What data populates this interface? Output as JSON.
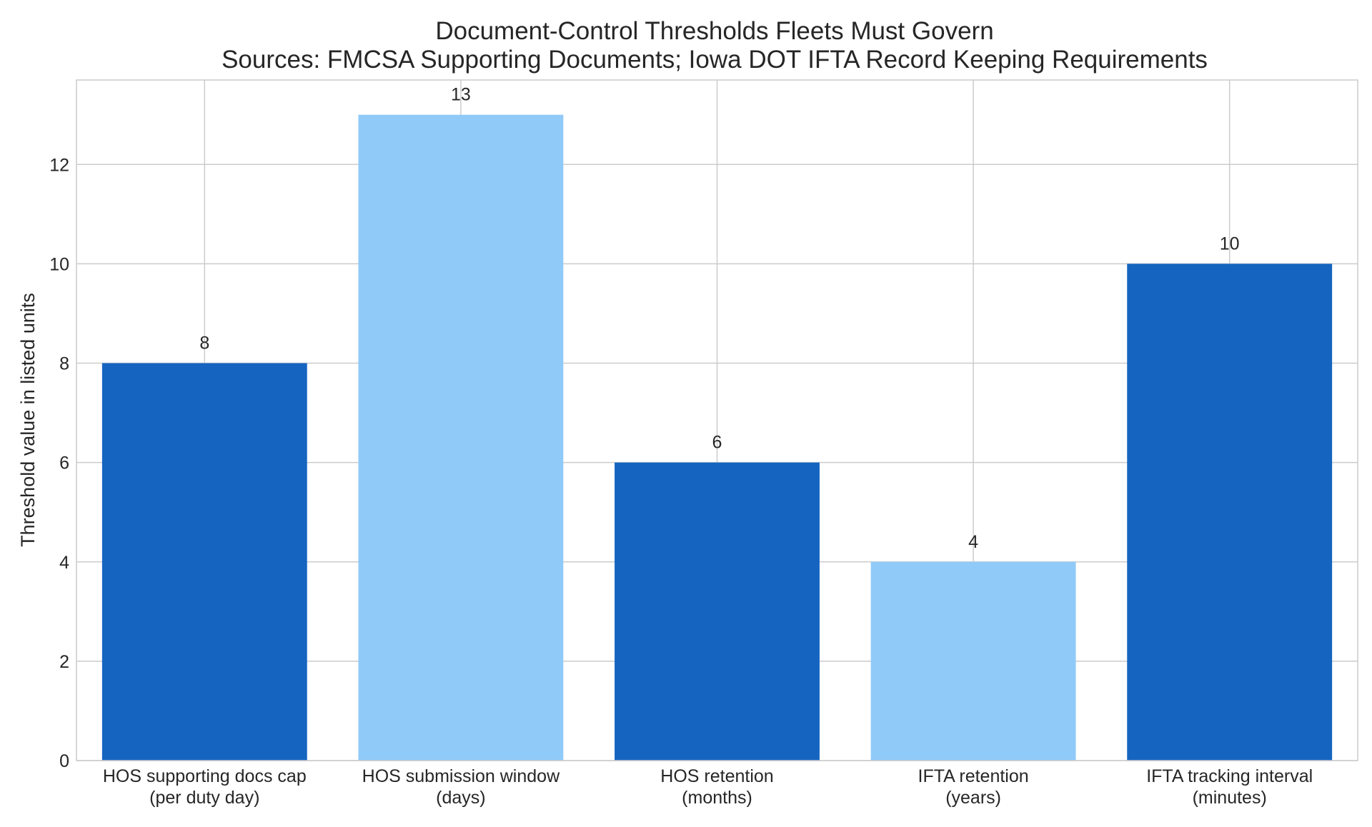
{
  "chart_data": {
    "type": "bar",
    "title": "Document-Control Thresholds Fleets Must Govern",
    "subtitle": "Sources: FMCSA Supporting Documents; Iowa DOT IFTA Record Keeping Requirements",
    "xlabel": "",
    "ylabel": "Threshold value in listed units",
    "ylim": [
      0,
      13.7
    ],
    "yticks": [
      0,
      2,
      4,
      6,
      8,
      10,
      12
    ],
    "grid": true,
    "legend": "none",
    "categories": [
      [
        "HOS supporting docs cap",
        "(per duty day)"
      ],
      [
        "HOS submission window",
        "(days)"
      ],
      [
        "HOS retention",
        "(months)"
      ],
      [
        "IFTA retention",
        "(years)"
      ],
      [
        "IFTA tracking interval",
        "(minutes)"
      ]
    ],
    "values": [
      8,
      13,
      6,
      4,
      10
    ],
    "data_labels": [
      "8",
      "13",
      "6",
      "4",
      "10"
    ],
    "bar_colors": [
      "#1565c0",
      "#90caf9",
      "#1565c0",
      "#90caf9",
      "#1565c0"
    ],
    "grid_color": "#cccccc",
    "text_color": "#262626"
  }
}
